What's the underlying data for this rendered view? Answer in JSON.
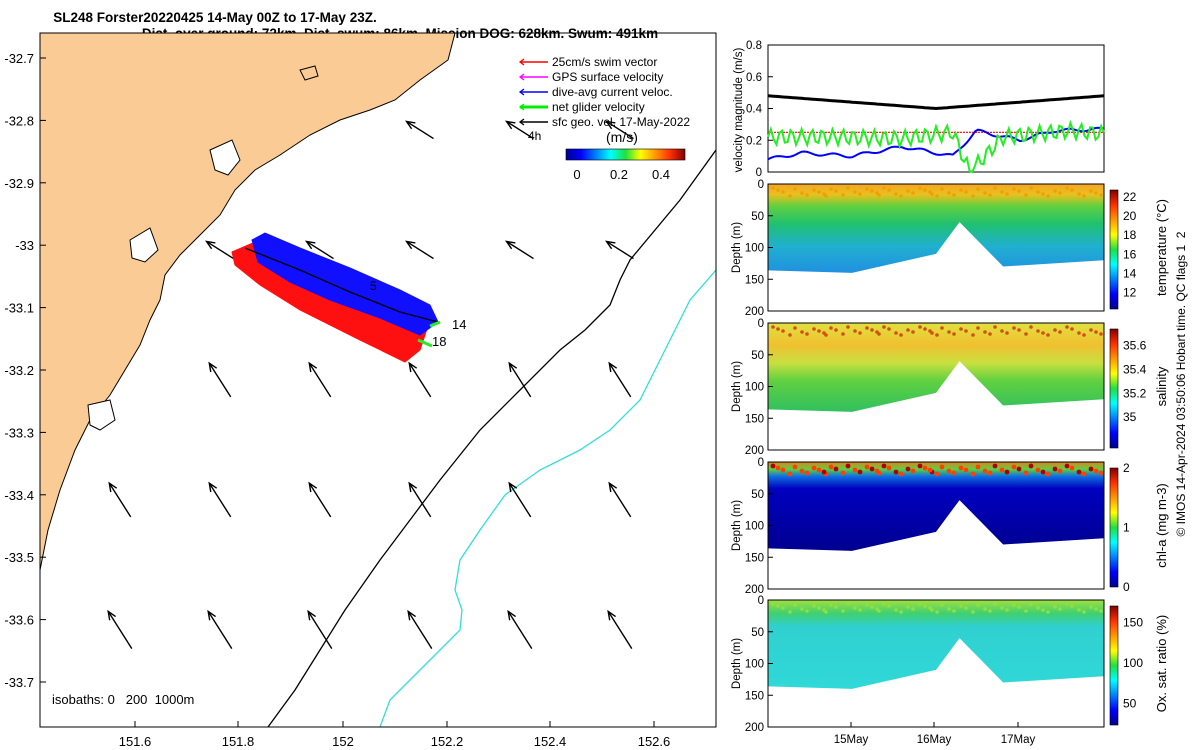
{
  "title_line1": "SL248 Forster20220425 14-May 00Z to 17-May 23Z.",
  "title_line2": "Dist. over ground: 72km. Dist. swum: 86km. Mission DOG: 628km. Swum: 491km",
  "map": {
    "x_ticks": [
      "151.6",
      "151.8",
      "152",
      "152.2",
      "152.4",
      "152.6"
    ],
    "y_ticks": [
      "-32.7",
      "-32.8",
      "-32.9",
      "-33",
      "-33.1",
      "-33.2",
      "-33.3",
      "-33.4",
      "-33.5",
      "-33.6",
      "-33.7"
    ],
    "legend": [
      {
        "label": "25cm/s swim vector",
        "color": "#ff0000"
      },
      {
        "label": "GPS surface velocity",
        "color": "#ff00ff"
      },
      {
        "label": "dive-avg current veloc.",
        "color": "#0000ff"
      },
      {
        "label": "net glider velocity",
        "color": "#00ee00"
      },
      {
        "label": "sfc geo. vel. 17-May-2022",
        "color": "#000000"
      }
    ],
    "legend_extra": "4h",
    "colorbar_label": "(m/s)",
    "colorbar_ticks": [
      "0",
      "0.2",
      "0.4"
    ],
    "isobaths_label": "isobaths: 0   200  1000m",
    "track_labels": [
      "14",
      "18",
      "5"
    ],
    "colors": {
      "land": "#fbcb96",
      "isobath_200": "#000000",
      "isobath_1000": "#33dddd"
    }
  },
  "chart_data": [
    {
      "type": "line",
      "title": "",
      "ylabel": "velocity magnitude (m/s)",
      "ylim": [
        0,
        0.8
      ],
      "y_ticks": [
        "0",
        "0.2",
        "0.4",
        "0.6",
        "0.8"
      ],
      "x_range_days": [
        "14-May",
        "17-May"
      ],
      "series": [
        {
          "color": "#000000",
          "x": [
            0,
            0.25,
            0.5,
            0.75,
            1
          ],
          "values": [
            0.48,
            0.44,
            0.4,
            0.44,
            0.48
          ]
        },
        {
          "color": "#ff0000",
          "x": [
            0,
            1
          ],
          "values": [
            0.25,
            0.25
          ]
        },
        {
          "color": "#0000ff",
          "x": [
            0,
            0.1,
            0.25,
            0.4,
            0.55,
            0.62,
            0.75,
            0.85,
            1
          ],
          "values": [
            0.08,
            0.12,
            0.1,
            0.16,
            0.1,
            0.26,
            0.2,
            0.26,
            0.27
          ]
        },
        {
          "color": "#22ee22",
          "x": [
            0,
            0.2,
            0.4,
            0.55,
            0.6,
            0.7,
            0.8,
            0.9,
            1
          ],
          "values": [
            0.22,
            0.22,
            0.21,
            0.25,
            0.0,
            0.22,
            0.24,
            0.26,
            0.24
          ]
        }
      ]
    },
    {
      "type": "heatmap",
      "ylabel": "Depth (m)",
      "colorbar_label": "temperature (°C)",
      "y_ticks": [
        "0",
        "50",
        "100",
        "150",
        "200"
      ],
      "colorbar_ticks": [
        "12",
        "14",
        "16",
        "18",
        "20",
        "22"
      ]
    },
    {
      "type": "heatmap",
      "ylabel": "Depth (m)",
      "colorbar_label": "salinity",
      "y_ticks": [
        "0",
        "50",
        "100",
        "150",
        "200"
      ],
      "colorbar_ticks": [
        "35",
        "35.2",
        "35.4",
        "35.6"
      ]
    },
    {
      "type": "heatmap",
      "ylabel": "Depth (m)",
      "colorbar_label": "chl-a (mg m-3)",
      "y_ticks": [
        "0",
        "50",
        "100",
        "150",
        "200"
      ],
      "colorbar_ticks": [
        "0",
        "1",
        "2"
      ]
    },
    {
      "type": "heatmap",
      "ylabel": "Depth (m)",
      "colorbar_label": "Ox. sat. ratio (%)",
      "y_ticks": [
        "0",
        "50",
        "100",
        "150",
        "200"
      ],
      "colorbar_ticks": [
        "50",
        "100",
        "150"
      ],
      "x_ticks": [
        "15May",
        "16May",
        "17May"
      ]
    }
  ],
  "footer_side": "© IMOS 14-Apr-2024 03:50:06 Hobart time. QC flags 1  2"
}
